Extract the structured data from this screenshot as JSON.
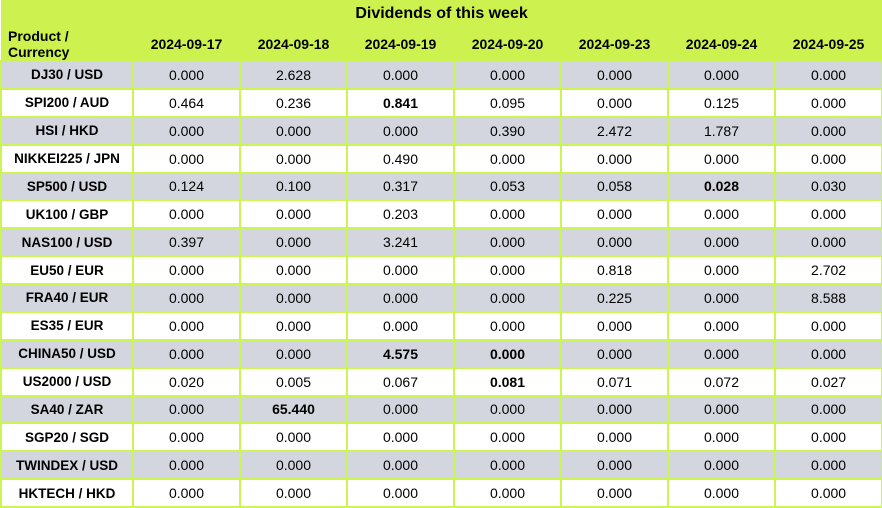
{
  "colors": {
    "header_bg": "#cdf24f",
    "grid_line": "#cdf455",
    "row_alt_bg": "#d3d6de",
    "row_bg": "#ffffff",
    "text": "#000000"
  },
  "chart_data": {
    "type": "table",
    "title": "Dividends of this week",
    "columns": [
      "Product / Currency",
      "2024-09-17",
      "2024-09-18",
      "2024-09-19",
      "2024-09-20",
      "2024-09-23",
      "2024-09-24",
      "2024-09-25"
    ],
    "rows": [
      {
        "product": "DJ30 / USD",
        "values": [
          "0.000",
          "2.628",
          "0.000",
          "0.000",
          "0.000",
          "0.000",
          "0.000"
        ],
        "bold": []
      },
      {
        "product": "SPI200 / AUD",
        "values": [
          "0.464",
          "0.236",
          "0.841",
          "0.095",
          "0.000",
          "0.125",
          "0.000"
        ],
        "bold": [
          2
        ]
      },
      {
        "product": "HSI / HKD",
        "values": [
          "0.000",
          "0.000",
          "0.000",
          "0.390",
          "2.472",
          "1.787",
          "0.000"
        ],
        "bold": []
      },
      {
        "product": "NIKKEI225 / JPN",
        "values": [
          "0.000",
          "0.000",
          "0.490",
          "0.000",
          "0.000",
          "0.000",
          "0.000"
        ],
        "bold": []
      },
      {
        "product": "SP500 / USD",
        "values": [
          "0.124",
          "0.100",
          "0.317",
          "0.053",
          "0.058",
          "0.028",
          "0.030"
        ],
        "bold": [
          5
        ]
      },
      {
        "product": "UK100 / GBP",
        "values": [
          "0.000",
          "0.000",
          "0.203",
          "0.000",
          "0.000",
          "0.000",
          "0.000"
        ],
        "bold": []
      },
      {
        "product": "NAS100 / USD",
        "values": [
          "0.397",
          "0.000",
          "3.241",
          "0.000",
          "0.000",
          "0.000",
          "0.000"
        ],
        "bold": []
      },
      {
        "product": "EU50 / EUR",
        "values": [
          "0.000",
          "0.000",
          "0.000",
          "0.000",
          "0.818",
          "0.000",
          "2.702"
        ],
        "bold": []
      },
      {
        "product": "FRA40 / EUR",
        "values": [
          "0.000",
          "0.000",
          "0.000",
          "0.000",
          "0.225",
          "0.000",
          "8.588"
        ],
        "bold": []
      },
      {
        "product": "ES35 / EUR",
        "values": [
          "0.000",
          "0.000",
          "0.000",
          "0.000",
          "0.000",
          "0.000",
          "0.000"
        ],
        "bold": []
      },
      {
        "product": "CHINA50 / USD",
        "values": [
          "0.000",
          "0.000",
          "4.575",
          "0.000",
          "0.000",
          "0.000",
          "0.000"
        ],
        "bold": [
          2,
          3
        ]
      },
      {
        "product": "US2000 / USD",
        "values": [
          "0.020",
          "0.005",
          "0.067",
          "0.081",
          "0.071",
          "0.072",
          "0.027"
        ],
        "bold": [
          3
        ]
      },
      {
        "product": "SA40 / ZAR",
        "values": [
          "0.000",
          "65.440",
          "0.000",
          "0.000",
          "0.000",
          "0.000",
          "0.000"
        ],
        "bold": [
          1
        ]
      },
      {
        "product": "SGP20 / SGD",
        "values": [
          "0.000",
          "0.000",
          "0.000",
          "0.000",
          "0.000",
          "0.000",
          "0.000"
        ],
        "bold": []
      },
      {
        "product": "TWINDEX / USD",
        "values": [
          "0.000",
          "0.000",
          "0.000",
          "0.000",
          "0.000",
          "0.000",
          "0.000"
        ],
        "bold": []
      },
      {
        "product": "HKTECH / HKD",
        "values": [
          "0.000",
          "0.000",
          "0.000",
          "0.000",
          "0.000",
          "0.000",
          "0.000"
        ],
        "bold": []
      }
    ]
  }
}
